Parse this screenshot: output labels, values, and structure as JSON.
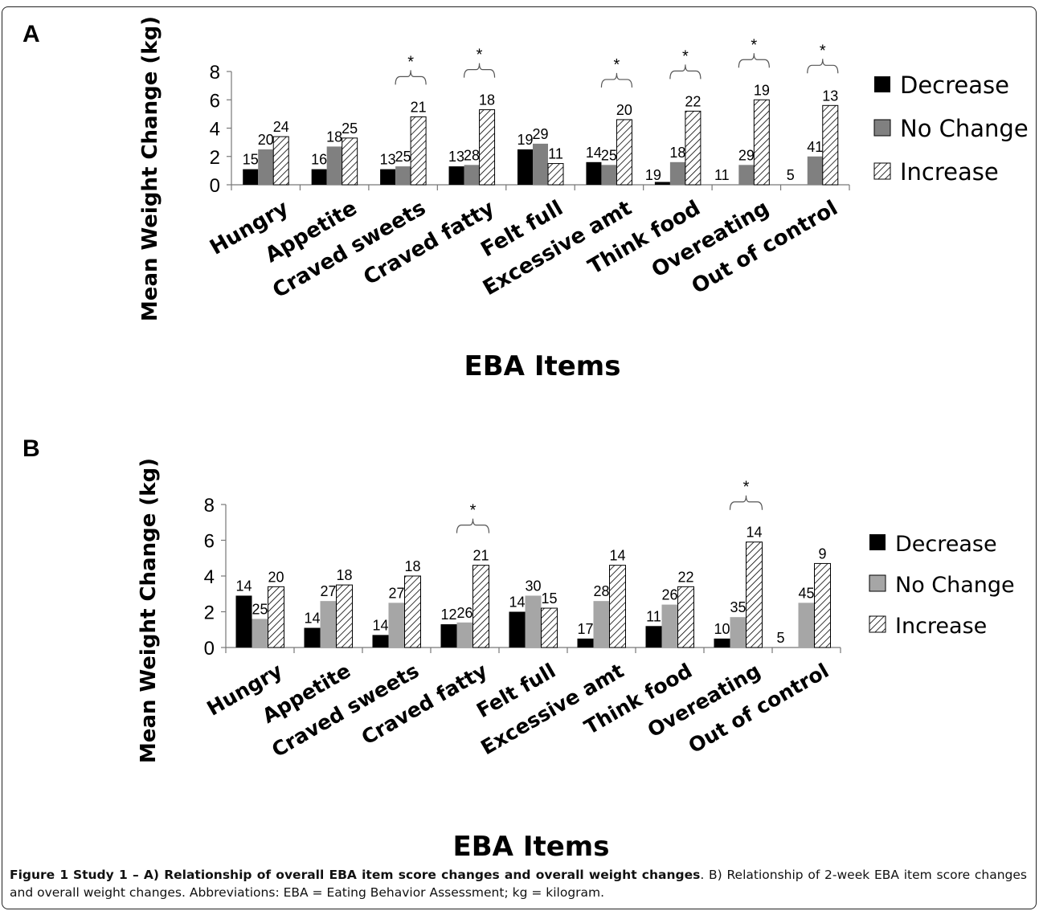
{
  "caption": {
    "label": "Figure 1",
    "bold_text": "Study 1 – A) Relationship of overall EBA item score changes and overall weight changes",
    "rest_text": ". B) Relationship of 2-week EBA item score changes and overall weight changes. Abbreviations: EBA = Eating Behavior Assessment; kg = kilogram."
  },
  "colors": {
    "decrease": "#000000",
    "no_change_a": "#808080",
    "no_change_b": "#a6a6a6",
    "increase_pattern": "hatched"
  },
  "chart_data": [
    {
      "panel": "A",
      "type": "bar",
      "xlabel": "EBA Items",
      "ylabel": "Mean Weight Change (kg)",
      "ylim": [
        0,
        8
      ],
      "yticks": [
        0,
        2,
        4,
        6,
        8
      ],
      "categories": [
        "Hungry",
        "Appetite",
        "Craved sweets",
        "Craved fatty",
        "Felt full",
        "Excessive amt",
        "Think food",
        "Overeating",
        "Out of control"
      ],
      "series": [
        {
          "name": "Decrease",
          "values": [
            1.1,
            1.1,
            1.1,
            1.3,
            2.5,
            1.6,
            0.2,
            0.0,
            0.0
          ],
          "labels": [
            "15",
            "16",
            "13",
            "13",
            "19",
            "14",
            "19",
            "11",
            "5"
          ]
        },
        {
          "name": "No Change",
          "values": [
            2.5,
            2.7,
            1.3,
            1.4,
            2.9,
            1.4,
            1.6,
            1.4,
            2.0
          ],
          "labels": [
            "20",
            "18",
            "25",
            "28",
            "29",
            "25",
            "18",
            "29",
            "41"
          ]
        },
        {
          "name": "Increase",
          "values": [
            3.4,
            3.3,
            4.8,
            5.3,
            1.5,
            4.6,
            5.2,
            6.0,
            5.6
          ],
          "labels": [
            "24",
            "25",
            "21",
            "18",
            "11",
            "20",
            "22",
            "19",
            "13"
          ]
        }
      ],
      "significance": {
        "marker": "*",
        "categories": [
          2,
          3,
          5,
          6,
          7,
          8
        ]
      },
      "legend_position": "right"
    },
    {
      "panel": "B",
      "type": "bar",
      "xlabel": "EBA Items",
      "ylabel": "Mean Weight Change (kg)",
      "ylim": [
        0,
        8
      ],
      "yticks": [
        0,
        2,
        4,
        6,
        8
      ],
      "categories": [
        "Hungry",
        "Appetite",
        "Craved sweets",
        "Craved fatty",
        "Felt full",
        "Excessive amt",
        "Think food",
        "Overeating",
        "Out of control"
      ],
      "series": [
        {
          "name": "Decrease",
          "values": [
            2.9,
            1.1,
            0.7,
            1.3,
            2.0,
            0.5,
            1.2,
            0.5,
            0.0
          ],
          "labels": [
            "14",
            "14",
            "14",
            "12",
            "14",
            "17",
            "11",
            "10",
            "5"
          ]
        },
        {
          "name": "No Change",
          "values": [
            1.6,
            2.6,
            2.5,
            1.4,
            2.9,
            2.6,
            2.4,
            1.7,
            2.5
          ],
          "labels": [
            "25",
            "27",
            "27",
            "26",
            "30",
            "28",
            "26",
            "35",
            "45"
          ]
        },
        {
          "name": "Increase",
          "values": [
            3.4,
            3.5,
            4.0,
            4.6,
            2.2,
            4.6,
            3.4,
            5.9,
            4.7
          ],
          "labels": [
            "20",
            "18",
            "18",
            "21",
            "15",
            "14",
            "22",
            "14",
            "9"
          ]
        }
      ],
      "significance": {
        "marker": "*",
        "categories": [
          3,
          7
        ]
      },
      "legend_position": "right"
    }
  ]
}
